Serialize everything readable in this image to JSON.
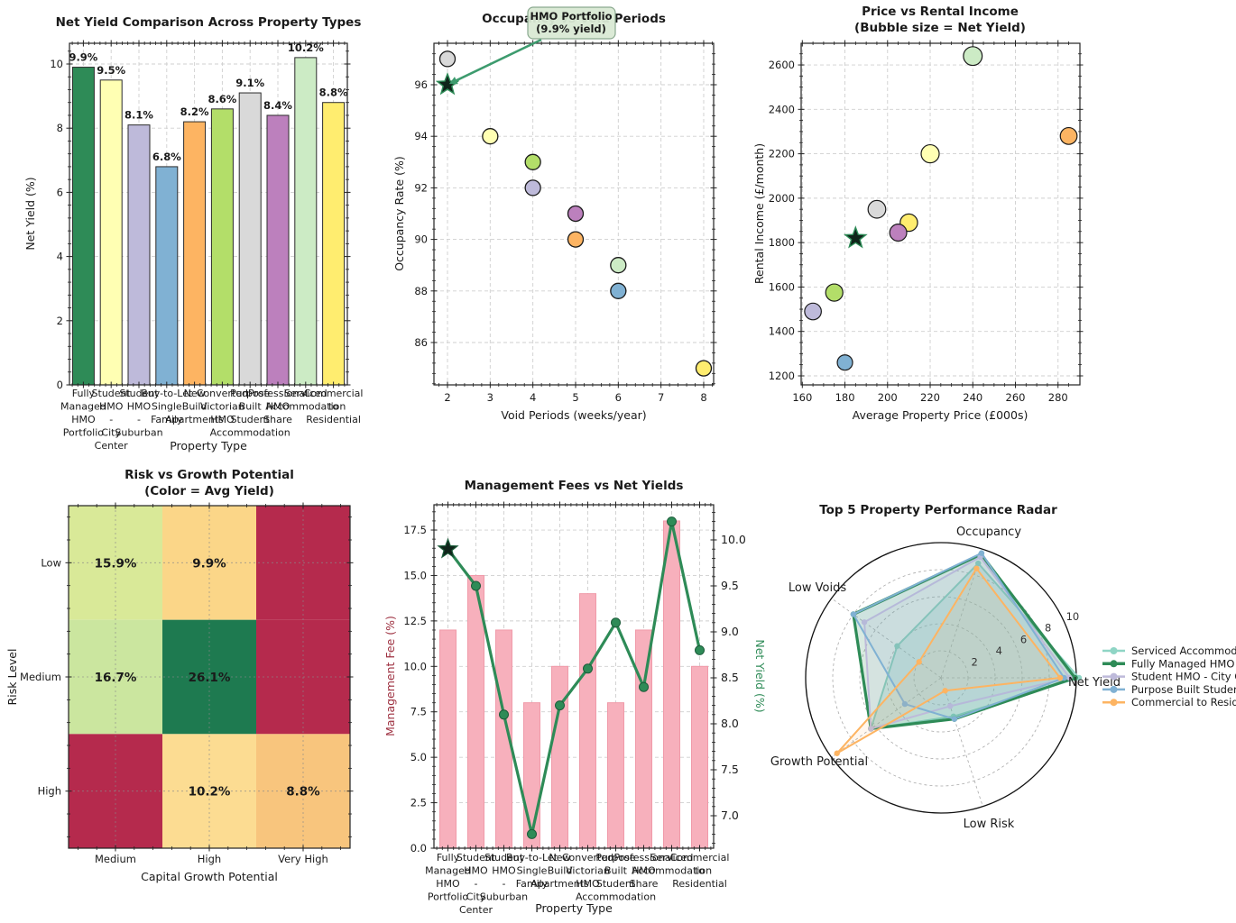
{
  "figure": {
    "background": "#ffffff"
  },
  "property_types": [
    {
      "name": "Fully Managed HMO Portfolio",
      "color": "#2e8b57",
      "net_yield": 9.9,
      "occupancy": 96,
      "void_weeks": 2,
      "price_k": 185,
      "rent_month": 1820,
      "mgmt_fee": 12,
      "highlight": true
    },
    {
      "name": "Student HMO - City Center",
      "color": "#ffffb3",
      "net_yield": 9.5,
      "occupancy": 94,
      "void_weeks": 3,
      "price_k": 220,
      "rent_month": 2200,
      "mgmt_fee": 15
    },
    {
      "name": "Student HMO - Suburban",
      "color": "#bebada",
      "net_yield": 8.1,
      "occupancy": 92,
      "void_weeks": 4,
      "price_k": 165,
      "rent_month": 1490,
      "mgmt_fee": 12
    },
    {
      "name": "Buy-to-Let Single Family",
      "color": "#80b1d3",
      "net_yield": 6.8,
      "occupancy": 88,
      "void_weeks": 6,
      "price_k": 180,
      "rent_month": 1260,
      "mgmt_fee": 8
    },
    {
      "name": "New Build Apartments",
      "color": "#fdb462",
      "net_yield": 8.2,
      "occupancy": 90,
      "void_weeks": 5,
      "price_k": 285,
      "rent_month": 2280,
      "mgmt_fee": 10
    },
    {
      "name": "Converted Victorian HMO",
      "color": "#b3de69",
      "net_yield": 8.6,
      "occupancy": 93,
      "void_weeks": 4,
      "price_k": 175,
      "rent_month": 1575,
      "mgmt_fee": 14
    },
    {
      "name": "Purpose Built Student Accommodation",
      "color": "#d9d9d9",
      "net_yield": 9.1,
      "occupancy": 97,
      "void_weeks": 2,
      "price_k": 195,
      "rent_month": 1950,
      "mgmt_fee": 8
    },
    {
      "name": "Professional HMO Share",
      "color": "#bc80bd",
      "net_yield": 8.4,
      "occupancy": 91,
      "void_weeks": 5,
      "price_k": 205,
      "rent_month": 1845,
      "mgmt_fee": 12
    },
    {
      "name": "Serviced Accommodation",
      "color": "#ccebc5",
      "net_yield": 10.2,
      "occupancy": 89,
      "void_weeks": 6,
      "price_k": 240,
      "rent_month": 2640,
      "mgmt_fee": 18
    },
    {
      "name": "Commercial to Residential",
      "color": "#ffed6f",
      "net_yield": 8.8,
      "occupancy": 85,
      "void_weeks": 8,
      "price_k": 210,
      "rent_month": 1890,
      "mgmt_fee": 10
    }
  ],
  "chart_data": [
    {
      "id": "net_yield_bar",
      "type": "bar",
      "title": "Net Yield Comparison Across Property Types",
      "xlabel": "Property Type",
      "ylabel": "Net Yield (%)",
      "categories": [
        "Fully Managed HMO Portfolio",
        "Student HMO - City Center",
        "Student HMO - Suburban",
        "Buy-to-Let Single Family",
        "New Build Apartments",
        "Converted Victorian HMO",
        "Purpose Built Student Accommodation",
        "Professional HMO Share",
        "Serviced Accommodation",
        "Commercial to Residential"
      ],
      "category_lines": [
        [
          "Fully",
          "Managed",
          "HMO",
          "Portfolio"
        ],
        [
          "Student",
          "HMO",
          "-",
          "City",
          "Center"
        ],
        [
          "Student",
          "HMO",
          "-",
          "Suburban"
        ],
        [
          "Buy-to-Let",
          "Single",
          "Family"
        ],
        [
          "New",
          "Build",
          "Apartments"
        ],
        [
          "Converted",
          "Victorian",
          "HMO"
        ],
        [
          "Purpose",
          "Built",
          "Student",
          "Accommodation"
        ],
        [
          "Professional",
          "HMO",
          "Share"
        ],
        [
          "Serviced",
          "Accommodation"
        ],
        [
          "Commercial",
          "to",
          "Residential"
        ]
      ],
      "values": [
        9.9,
        9.5,
        8.1,
        6.8,
        8.2,
        8.6,
        9.1,
        8.4,
        10.2,
        8.8
      ],
      "value_labels": [
        "9.9%",
        "9.5%",
        "8.1%",
        "6.8%",
        "8.2%",
        "8.6%",
        "9.1%",
        "8.4%",
        "10.2%",
        "8.8%"
      ],
      "colors": [
        "#2e8b57",
        "#ffffb3",
        "#bebada",
        "#80b1d3",
        "#fdb462",
        "#b3de69",
        "#d9d9d9",
        "#bc80bd",
        "#ccebc5",
        "#ffed6f"
      ],
      "yticks": [
        0,
        2,
        4,
        6,
        8,
        10
      ],
      "ylim": [
        0,
        10.65
      ]
    },
    {
      "id": "occupancy_voids_scatter",
      "type": "scatter",
      "title": "Occupancy vs Void Periods",
      "xlabel": "Void Periods (weeks/year)",
      "ylabel": "Occupancy Rate (%)",
      "xticks": [
        2,
        3,
        4,
        5,
        6,
        7,
        8
      ],
      "yticks": [
        86,
        88,
        90,
        92,
        94,
        96
      ],
      "xlim": [
        1.68,
        8.24
      ],
      "ylim": [
        84.35,
        97.6
      ],
      "points": [
        {
          "name": "Purpose Built Student Accommodation",
          "x": 2,
          "y": 97,
          "color": "#d9d9d9"
        },
        {
          "name": "Fully Managed HMO Portfolio",
          "x": 2,
          "y": 96,
          "color": "#2e8b57",
          "star": true
        },
        {
          "name": "Student HMO - City Center",
          "x": 3,
          "y": 94,
          "color": "#ffffb3"
        },
        {
          "name": "Converted Victorian HMO",
          "x": 4,
          "y": 93,
          "color": "#b3de69"
        },
        {
          "name": "Student HMO - Suburban",
          "x": 4,
          "y": 92,
          "color": "#bebada"
        },
        {
          "name": "Professional HMO Share",
          "x": 5,
          "y": 91,
          "color": "#bc80bd"
        },
        {
          "name": "New Build Apartments",
          "x": 5,
          "y": 90,
          "color": "#fdb462"
        },
        {
          "name": "Serviced Accommodation",
          "x": 6,
          "y": 89,
          "color": "#ccebc5"
        },
        {
          "name": "Buy-to-Let Single Family",
          "x": 6,
          "y": 88,
          "color": "#80b1d3"
        },
        {
          "name": "Commercial to Residential",
          "x": 8,
          "y": 85,
          "color": "#ffed6f"
        }
      ],
      "annotation": {
        "line1": "HMO Portfolio",
        "line2": "(9.9% yield)",
        "target_x": 2,
        "target_y": 96,
        "box_fill": "#d9e9d4",
        "box_stroke": "#8aa98f",
        "arrow_color": "#3d9b6e"
      }
    },
    {
      "id": "price_rent_bubble",
      "type": "scatter",
      "title_line1": "Price vs Rental Income",
      "title_line2": "(Bubble size = Net Yield)",
      "xlabel": "Average Property Price (£000s)",
      "ylabel": "Rental Income (£/month)",
      "xticks": [
        160,
        180,
        200,
        220,
        240,
        260,
        280
      ],
      "yticks": [
        1200,
        1400,
        1600,
        1800,
        2000,
        2200,
        2400,
        2600
      ],
      "xlim": [
        159.4,
        290.3
      ],
      "ylim": [
        1159,
        2697
      ],
      "points": [
        {
          "name": "Serviced Accommodation",
          "x": 240,
          "y": 2640,
          "size": 10.2,
          "color": "#ccebc5"
        },
        {
          "name": "New Build Apartments",
          "x": 285,
          "y": 2280,
          "size": 8.2,
          "color": "#fdb462"
        },
        {
          "name": "Student HMO - City Center",
          "x": 220,
          "y": 2200,
          "size": 9.5,
          "color": "#ffffb3"
        },
        {
          "name": "Purpose Built Student Accommodation",
          "x": 195,
          "y": 1950,
          "size": 9.1,
          "color": "#d9d9d9"
        },
        {
          "name": "Commercial to Residential",
          "x": 210,
          "y": 1890,
          "size": 8.8,
          "color": "#ffed6f"
        },
        {
          "name": "Professional HMO Share",
          "x": 205,
          "y": 1845,
          "size": 8.4,
          "color": "#bc80bd"
        },
        {
          "name": "Fully Managed HMO Portfolio",
          "x": 185,
          "y": 1820,
          "size": 9.9,
          "color": "#2e8b57",
          "star": true
        },
        {
          "name": "Converted Victorian HMO",
          "x": 175,
          "y": 1575,
          "size": 8.6,
          "color": "#b3de69"
        },
        {
          "name": "Student HMO - Suburban",
          "x": 165,
          "y": 1490,
          "size": 8.1,
          "color": "#bebada"
        },
        {
          "name": "Buy-to-Let Single Family",
          "x": 180,
          "y": 1260,
          "size": 6.8,
          "color": "#80b1d3"
        }
      ]
    },
    {
      "id": "risk_growth_heatmap",
      "type": "heatmap",
      "title_line1": "Risk vs Growth Potential",
      "title_line2": "(Color = Avg Yield)",
      "xlabel": "Capital Growth Potential",
      "ylabel": "Risk Level",
      "columns": [
        "Medium",
        "High",
        "Very High"
      ],
      "rows": [
        "Low",
        "Medium",
        "High"
      ],
      "cell_labels": [
        [
          "15.9%",
          "9.9%",
          ""
        ],
        [
          "16.7%",
          "26.1%",
          ""
        ],
        [
          "",
          "10.2%",
          "8.8%"
        ]
      ],
      "cell_colors": [
        [
          "#d9e998",
          "#fbd688",
          "#b52a4d"
        ],
        [
          "#cbe69f",
          "#1e7a50",
          "#b52a4d"
        ],
        [
          "#b52a4d",
          "#fcdc92",
          "#f8c57d"
        ]
      ]
    },
    {
      "id": "fees_yields_combo",
      "type": "bar+line",
      "title": "Management Fees vs Net Yields",
      "xlabel": "Property Type",
      "ylabel_left": "Management Fee (%)",
      "ylabel_right": "Net Yield (%)",
      "ylabel_left_color": "#9d2f3f",
      "ylabel_right_color": "#2e8b57",
      "bar_values": [
        12,
        15,
        12,
        8,
        10,
        14,
        8,
        12,
        18,
        10
      ],
      "bar_color": "#f7b0bc",
      "bar_edge": "#f09aa9",
      "line_values": [
        9.9,
        9.5,
        8.1,
        6.8,
        8.2,
        8.6,
        9.1,
        8.4,
        10.2,
        8.8
      ],
      "line_color": "#2e8b57",
      "yticks_left": [
        0,
        2.5,
        5,
        7.5,
        10,
        12.5,
        15,
        17.5
      ],
      "yticks_right": [
        7,
        7.5,
        8,
        8.5,
        9,
        9.5,
        10
      ],
      "category_lines": [
        [
          "Fully",
          "Managed",
          "HMO",
          "Portfolio"
        ],
        [
          "Student",
          "HMO",
          "-",
          "City",
          "Center"
        ],
        [
          "Student",
          "HMO",
          "-",
          "Suburban"
        ],
        [
          "Buy-to-Let",
          "Single",
          "Family"
        ],
        [
          "New",
          "Build",
          "Apartments"
        ],
        [
          "Converted",
          "Victorian",
          "HMO"
        ],
        [
          "Purpose",
          "Built",
          "Student",
          "Accommodation"
        ],
        [
          "Professional",
          "HMO",
          "Share"
        ],
        [
          "Serviced",
          "Accommodation"
        ],
        [
          "Commercial",
          "to",
          "Residential"
        ]
      ]
    },
    {
      "id": "performance_radar",
      "type": "radar",
      "title": "Top 5 Property Performance Radar",
      "axes": [
        "Net Yield",
        "Occupancy",
        "Low Voids",
        "Growth Potential",
        "Low Risk"
      ],
      "angles_deg": [
        0,
        72,
        144,
        216,
        288
      ],
      "rticks": [
        2,
        4,
        6,
        8,
        10
      ],
      "rmax": 10,
      "series": [
        {
          "name": "Serviced Accommodati",
          "color": "#8fd5c5",
          "width": 2,
          "fill_opacity": 0.28,
          "values": [
            10.2,
            8.9,
            4.0,
            6.4,
            3.0
          ]
        },
        {
          "name": "Fully Managed HMO Po",
          "color": "#2e8b57",
          "width": 3.2,
          "fill_opacity": 0.18,
          "values": [
            9.9,
            9.6,
            8.0,
            6.4,
            3.2
          ]
        },
        {
          "name": "Student HMO - City C",
          "color": "#bebada",
          "width": 2,
          "fill_opacity": 0.14,
          "values": [
            9.5,
            9.4,
            7.0,
            6.4,
            2.2
          ]
        },
        {
          "name": "Purpose Built Studen",
          "color": "#80b1d3",
          "width": 2,
          "fill_opacity": 0.12,
          "values": [
            9.1,
            9.7,
            8.0,
            3.3,
            3.2
          ]
        },
        {
          "name": "Commercial to Reside",
          "color": "#fdb462",
          "width": 2,
          "fill_opacity": 0.1,
          "values": [
            8.8,
            8.5,
            2.0,
            9.5,
            1.0
          ]
        }
      ]
    }
  ]
}
